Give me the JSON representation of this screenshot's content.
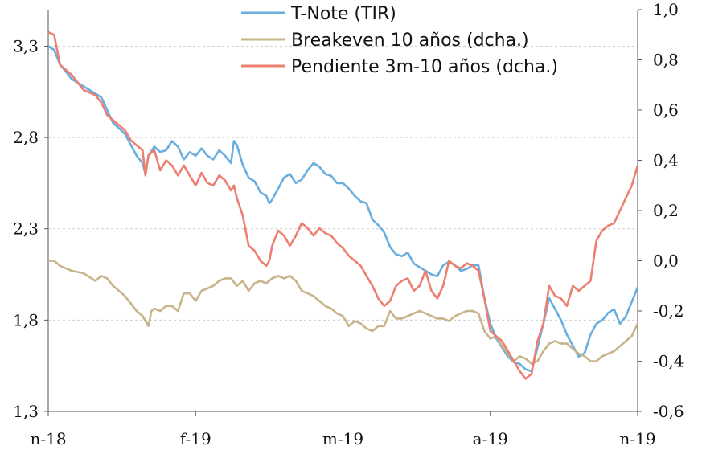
{
  "chart_data": {
    "type": "line",
    "title": "",
    "legend_position": "top-center",
    "grid": true,
    "x_ticks": [
      "n-18",
      "f-19",
      "m-19",
      "a-19",
      "n-19"
    ],
    "x_range": [
      "2018-11",
      "2019-11"
    ],
    "y_left": {
      "ylim": [
        1.3,
        3.5
      ],
      "ticks": [
        "1,3",
        "1,8",
        "2,3",
        "2,8",
        "3,3"
      ],
      "tick_values": [
        1.3,
        1.8,
        2.3,
        2.8,
        3.3
      ]
    },
    "y_right": {
      "ylim": [
        -0.6,
        1.0
      ],
      "ticks": [
        "-0,6",
        "-0,4",
        "-0,2",
        "0,0",
        "0,2",
        "0,4",
        "0,6",
        "0,8",
        "1,0"
      ],
      "tick_values": [
        -0.6,
        -0.4,
        -0.2,
        0.0,
        0.2,
        0.4,
        0.6,
        0.8,
        1.0
      ]
    },
    "series": [
      {
        "name": "T-Note (TIR)",
        "axis": "left",
        "color": "#6aaee0",
        "points": [
          [
            0.0,
            3.3
          ],
          [
            0.01,
            3.28
          ],
          [
            0.02,
            3.2
          ],
          [
            0.04,
            3.12
          ],
          [
            0.06,
            3.08
          ],
          [
            0.08,
            3.04
          ],
          [
            0.09,
            3.02
          ],
          [
            0.1,
            2.95
          ],
          [
            0.11,
            2.88
          ],
          [
            0.12,
            2.85
          ],
          [
            0.13,
            2.82
          ],
          [
            0.14,
            2.76
          ],
          [
            0.15,
            2.7
          ],
          [
            0.16,
            2.66
          ],
          [
            0.165,
            2.6
          ],
          [
            0.17,
            2.7
          ],
          [
            0.18,
            2.75
          ],
          [
            0.19,
            2.72
          ],
          [
            0.2,
            2.73
          ],
          [
            0.21,
            2.78
          ],
          [
            0.22,
            2.75
          ],
          [
            0.23,
            2.68
          ],
          [
            0.24,
            2.72
          ],
          [
            0.25,
            2.7
          ],
          [
            0.26,
            2.74
          ],
          [
            0.27,
            2.7
          ],
          [
            0.28,
            2.68
          ],
          [
            0.29,
            2.73
          ],
          [
            0.3,
            2.7
          ],
          [
            0.31,
            2.66
          ],
          [
            0.315,
            2.78
          ],
          [
            0.32,
            2.76
          ],
          [
            0.33,
            2.65
          ],
          [
            0.34,
            2.58
          ],
          [
            0.35,
            2.56
          ],
          [
            0.36,
            2.5
          ],
          [
            0.37,
            2.48
          ],
          [
            0.375,
            2.44
          ],
          [
            0.38,
            2.46
          ],
          [
            0.39,
            2.52
          ],
          [
            0.4,
            2.58
          ],
          [
            0.41,
            2.6
          ],
          [
            0.42,
            2.55
          ],
          [
            0.43,
            2.57
          ],
          [
            0.44,
            2.62
          ],
          [
            0.45,
            2.66
          ],
          [
            0.46,
            2.64
          ],
          [
            0.47,
            2.6
          ],
          [
            0.48,
            2.59
          ],
          [
            0.49,
            2.55
          ],
          [
            0.5,
            2.55
          ],
          [
            0.51,
            2.52
          ],
          [
            0.52,
            2.48
          ],
          [
            0.53,
            2.45
          ],
          [
            0.54,
            2.44
          ],
          [
            0.55,
            2.35
          ],
          [
            0.56,
            2.32
          ],
          [
            0.57,
            2.28
          ],
          [
            0.58,
            2.2
          ],
          [
            0.59,
            2.16
          ],
          [
            0.6,
            2.15
          ],
          [
            0.61,
            2.17
          ],
          [
            0.62,
            2.11
          ],
          [
            0.63,
            2.09
          ],
          [
            0.64,
            2.07
          ],
          [
            0.65,
            2.05
          ],
          [
            0.66,
            2.04
          ],
          [
            0.67,
            2.1
          ],
          [
            0.68,
            2.12
          ],
          [
            0.69,
            2.1
          ],
          [
            0.7,
            2.07
          ],
          [
            0.71,
            2.08
          ],
          [
            0.72,
            2.1
          ],
          [
            0.73,
            2.1
          ],
          [
            0.74,
            1.92
          ],
          [
            0.75,
            1.78
          ],
          [
            0.76,
            1.7
          ],
          [
            0.77,
            1.65
          ],
          [
            0.78,
            1.6
          ],
          [
            0.79,
            1.57
          ],
          [
            0.8,
            1.56
          ],
          [
            0.81,
            1.53
          ],
          [
            0.82,
            1.52
          ],
          [
            0.83,
            1.65
          ],
          [
            0.84,
            1.78
          ],
          [
            0.85,
            1.92
          ],
          [
            0.86,
            1.86
          ],
          [
            0.87,
            1.8
          ],
          [
            0.88,
            1.72
          ],
          [
            0.89,
            1.66
          ],
          [
            0.9,
            1.6
          ],
          [
            0.91,
            1.62
          ],
          [
            0.92,
            1.72
          ],
          [
            0.93,
            1.78
          ],
          [
            0.94,
            1.8
          ],
          [
            0.95,
            1.84
          ],
          [
            0.96,
            1.86
          ],
          [
            0.97,
            1.78
          ],
          [
            0.98,
            1.82
          ],
          [
            0.99,
            1.9
          ],
          [
            1.0,
            1.98
          ]
        ]
      },
      {
        "name": "Breakeven 10 años (dcha.)",
        "axis": "right",
        "color": "#c7b48a",
        "points": [
          [
            0.0,
            0.0
          ],
          [
            0.01,
            0.0
          ],
          [
            0.02,
            -0.02
          ],
          [
            0.04,
            -0.04
          ],
          [
            0.06,
            -0.05
          ],
          [
            0.08,
            -0.08
          ],
          [
            0.09,
            -0.06
          ],
          [
            0.1,
            -0.07
          ],
          [
            0.11,
            -0.1
          ],
          [
            0.12,
            -0.12
          ],
          [
            0.13,
            -0.14
          ],
          [
            0.14,
            -0.17
          ],
          [
            0.15,
            -0.2
          ],
          [
            0.16,
            -0.22
          ],
          [
            0.17,
            -0.26
          ],
          [
            0.175,
            -0.2
          ],
          [
            0.18,
            -0.19
          ],
          [
            0.19,
            -0.2
          ],
          [
            0.2,
            -0.18
          ],
          [
            0.21,
            -0.18
          ],
          [
            0.22,
            -0.2
          ],
          [
            0.23,
            -0.13
          ],
          [
            0.24,
            -0.13
          ],
          [
            0.25,
            -0.16
          ],
          [
            0.26,
            -0.12
          ],
          [
            0.27,
            -0.11
          ],
          [
            0.28,
            -0.1
          ],
          [
            0.29,
            -0.08
          ],
          [
            0.3,
            -0.07
          ],
          [
            0.31,
            -0.07
          ],
          [
            0.32,
            -0.1
          ],
          [
            0.33,
            -0.08
          ],
          [
            0.34,
            -0.12
          ],
          [
            0.35,
            -0.09
          ],
          [
            0.36,
            -0.08
          ],
          [
            0.37,
            -0.09
          ],
          [
            0.38,
            -0.07
          ],
          [
            0.39,
            -0.06
          ],
          [
            0.4,
            -0.07
          ],
          [
            0.41,
            -0.06
          ],
          [
            0.42,
            -0.08
          ],
          [
            0.43,
            -0.12
          ],
          [
            0.44,
            -0.13
          ],
          [
            0.45,
            -0.14
          ],
          [
            0.46,
            -0.16
          ],
          [
            0.47,
            -0.18
          ],
          [
            0.48,
            -0.19
          ],
          [
            0.49,
            -0.21
          ],
          [
            0.5,
            -0.22
          ],
          [
            0.51,
            -0.26
          ],
          [
            0.52,
            -0.24
          ],
          [
            0.53,
            -0.25
          ],
          [
            0.54,
            -0.27
          ],
          [
            0.55,
            -0.28
          ],
          [
            0.56,
            -0.26
          ],
          [
            0.57,
            -0.26
          ],
          [
            0.58,
            -0.2
          ],
          [
            0.59,
            -0.23
          ],
          [
            0.6,
            -0.23
          ],
          [
            0.61,
            -0.22
          ],
          [
            0.62,
            -0.21
          ],
          [
            0.63,
            -0.2
          ],
          [
            0.64,
            -0.21
          ],
          [
            0.65,
            -0.22
          ],
          [
            0.66,
            -0.23
          ],
          [
            0.67,
            -0.23
          ],
          [
            0.68,
            -0.24
          ],
          [
            0.69,
            -0.22
          ],
          [
            0.7,
            -0.21
          ],
          [
            0.71,
            -0.2
          ],
          [
            0.72,
            -0.2
          ],
          [
            0.73,
            -0.21
          ],
          [
            0.74,
            -0.28
          ],
          [
            0.75,
            -0.31
          ],
          [
            0.76,
            -0.3
          ],
          [
            0.77,
            -0.34
          ],
          [
            0.78,
            -0.37
          ],
          [
            0.79,
            -0.4
          ],
          [
            0.8,
            -0.38
          ],
          [
            0.81,
            -0.39
          ],
          [
            0.82,
            -0.41
          ],
          [
            0.83,
            -0.4
          ],
          [
            0.84,
            -0.36
          ],
          [
            0.85,
            -0.33
          ],
          [
            0.86,
            -0.32
          ],
          [
            0.87,
            -0.33
          ],
          [
            0.88,
            -0.33
          ],
          [
            0.89,
            -0.35
          ],
          [
            0.9,
            -0.37
          ],
          [
            0.91,
            -0.38
          ],
          [
            0.92,
            -0.4
          ],
          [
            0.93,
            -0.4
          ],
          [
            0.94,
            -0.38
          ],
          [
            0.95,
            -0.37
          ],
          [
            0.96,
            -0.36
          ],
          [
            0.97,
            -0.34
          ],
          [
            0.98,
            -0.32
          ],
          [
            0.99,
            -0.3
          ],
          [
            1.0,
            -0.25
          ]
        ]
      },
      {
        "name": "Pendiente 3m-10 años (dcha.)",
        "axis": "right",
        "color": "#ec7f70",
        "points": [
          [
            0.0,
            0.91
          ],
          [
            0.01,
            0.9
          ],
          [
            0.02,
            0.78
          ],
          [
            0.04,
            0.74
          ],
          [
            0.06,
            0.68
          ],
          [
            0.08,
            0.66
          ],
          [
            0.09,
            0.63
          ],
          [
            0.1,
            0.58
          ],
          [
            0.11,
            0.56
          ],
          [
            0.12,
            0.54
          ],
          [
            0.13,
            0.52
          ],
          [
            0.14,
            0.48
          ],
          [
            0.15,
            0.46
          ],
          [
            0.16,
            0.44
          ],
          [
            0.165,
            0.34
          ],
          [
            0.17,
            0.42
          ],
          [
            0.18,
            0.44
          ],
          [
            0.19,
            0.36
          ],
          [
            0.2,
            0.4
          ],
          [
            0.21,
            0.38
          ],
          [
            0.22,
            0.34
          ],
          [
            0.23,
            0.38
          ],
          [
            0.24,
            0.34
          ],
          [
            0.25,
            0.3
          ],
          [
            0.26,
            0.35
          ],
          [
            0.27,
            0.31
          ],
          [
            0.28,
            0.3
          ],
          [
            0.29,
            0.34
          ],
          [
            0.3,
            0.32
          ],
          [
            0.31,
            0.28
          ],
          [
            0.315,
            0.3
          ],
          [
            0.32,
            0.25
          ],
          [
            0.33,
            0.18
          ],
          [
            0.34,
            0.06
          ],
          [
            0.35,
            0.04
          ],
          [
            0.36,
            0.0
          ],
          [
            0.37,
            -0.02
          ],
          [
            0.375,
            0.0
          ],
          [
            0.38,
            0.06
          ],
          [
            0.39,
            0.12
          ],
          [
            0.4,
            0.1
          ],
          [
            0.41,
            0.06
          ],
          [
            0.42,
            0.1
          ],
          [
            0.43,
            0.15
          ],
          [
            0.44,
            0.13
          ],
          [
            0.45,
            0.1
          ],
          [
            0.46,
            0.13
          ],
          [
            0.47,
            0.11
          ],
          [
            0.48,
            0.1
          ],
          [
            0.49,
            0.07
          ],
          [
            0.5,
            0.05
          ],
          [
            0.51,
            0.02
          ],
          [
            0.52,
            0.0
          ],
          [
            0.53,
            -0.02
          ],
          [
            0.54,
            -0.06
          ],
          [
            0.55,
            -0.1
          ],
          [
            0.56,
            -0.15
          ],
          [
            0.57,
            -0.18
          ],
          [
            0.58,
            -0.16
          ],
          [
            0.59,
            -0.1
          ],
          [
            0.6,
            -0.08
          ],
          [
            0.61,
            -0.07
          ],
          [
            0.62,
            -0.12
          ],
          [
            0.63,
            -0.1
          ],
          [
            0.64,
            -0.04
          ],
          [
            0.65,
            -0.12
          ],
          [
            0.66,
            -0.15
          ],
          [
            0.67,
            -0.1
          ],
          [
            0.68,
            0.0
          ],
          [
            0.69,
            -0.02
          ],
          [
            0.7,
            -0.03
          ],
          [
            0.71,
            -0.01
          ],
          [
            0.72,
            -0.02
          ],
          [
            0.73,
            -0.04
          ],
          [
            0.74,
            -0.15
          ],
          [
            0.75,
            -0.28
          ],
          [
            0.76,
            -0.3
          ],
          [
            0.77,
            -0.32
          ],
          [
            0.78,
            -0.36
          ],
          [
            0.79,
            -0.4
          ],
          [
            0.8,
            -0.44
          ],
          [
            0.81,
            -0.47
          ],
          [
            0.82,
            -0.45
          ],
          [
            0.83,
            -0.32
          ],
          [
            0.84,
            -0.25
          ],
          [
            0.85,
            -0.1
          ],
          [
            0.86,
            -0.14
          ],
          [
            0.87,
            -0.15
          ],
          [
            0.88,
            -0.18
          ],
          [
            0.89,
            -0.1
          ],
          [
            0.9,
            -0.12
          ],
          [
            0.91,
            -0.1
          ],
          [
            0.92,
            -0.08
          ],
          [
            0.93,
            0.08
          ],
          [
            0.94,
            0.12
          ],
          [
            0.95,
            0.14
          ],
          [
            0.96,
            0.15
          ],
          [
            0.97,
            0.2
          ],
          [
            0.98,
            0.25
          ],
          [
            0.99,
            0.3
          ],
          [
            1.0,
            0.38
          ]
        ]
      }
    ]
  }
}
